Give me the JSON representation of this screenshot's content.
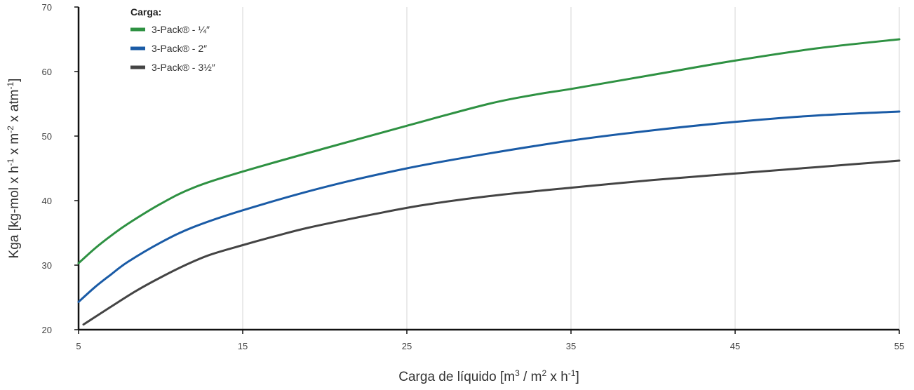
{
  "chart_data": {
    "type": "line",
    "xlabel": {
      "parts": [
        {
          "text": "Carga de líquido [m",
          "sup": false
        },
        {
          "text": "3",
          "sup": true
        },
        {
          "text": " / m",
          "sup": false
        },
        {
          "text": "2",
          "sup": true
        },
        {
          "text": " x h",
          "sup": false
        },
        {
          "text": "-1",
          "sup": true
        },
        {
          "text": "]",
          "sup": false
        }
      ]
    },
    "ylabel": {
      "parts": [
        {
          "text": "Kga [kg-mol x h",
          "sup": false
        },
        {
          "text": "-1",
          "sup": true
        },
        {
          "text": " x m",
          "sup": false
        },
        {
          "text": "-2",
          "sup": true
        },
        {
          "text": " x atm",
          "sup": false
        },
        {
          "text": "-1",
          "sup": true
        },
        {
          "text": "]",
          "sup": false
        }
      ]
    },
    "xlim": [
      5,
      55
    ],
    "ylim": [
      20,
      70
    ],
    "xticks": [
      5,
      15,
      25,
      35,
      45,
      55
    ],
    "yticks": [
      20,
      30,
      40,
      50,
      60,
      70
    ],
    "grid": "vertical",
    "legend": {
      "title": "Carga:",
      "position": "top-left"
    },
    "series": [
      {
        "name": "3-Pack® - ¼″",
        "color": "#2e9142",
        "x": [
          5,
          6,
          7,
          8,
          10,
          12,
          15,
          20,
          25,
          30,
          33,
          35,
          40,
          45,
          50,
          55
        ],
        "y": [
          30.3,
          32.6,
          34.6,
          36.4,
          39.5,
          42.0,
          44.5,
          48.1,
          51.6,
          55.0,
          56.5,
          57.3,
          59.5,
          61.7,
          63.6,
          65.0
        ]
      },
      {
        "name": "3-Pack® - 2″",
        "color": "#1a5ba6",
        "x": [
          5,
          6,
          7,
          8,
          10,
          12,
          15,
          20,
          25,
          30,
          35,
          40,
          45,
          50,
          55
        ],
        "y": [
          24.3,
          26.6,
          28.6,
          30.5,
          33.5,
          35.9,
          38.5,
          42.1,
          45.0,
          47.3,
          49.3,
          50.9,
          52.2,
          53.2,
          53.8
        ]
      },
      {
        "name": "3-Pack® - 3½″",
        "color": "#444444",
        "x": [
          5.3,
          7,
          8.5,
          10,
          11.5,
          13,
          15,
          17,
          19,
          23,
          26,
          30,
          35,
          40,
          45,
          50,
          55
        ],
        "y": [
          20.8,
          23.6,
          26.0,
          28.1,
          30.0,
          31.6,
          33.1,
          34.5,
          35.8,
          37.9,
          39.3,
          40.7,
          42.0,
          43.2,
          44.2,
          45.2,
          46.2
        ]
      }
    ]
  }
}
